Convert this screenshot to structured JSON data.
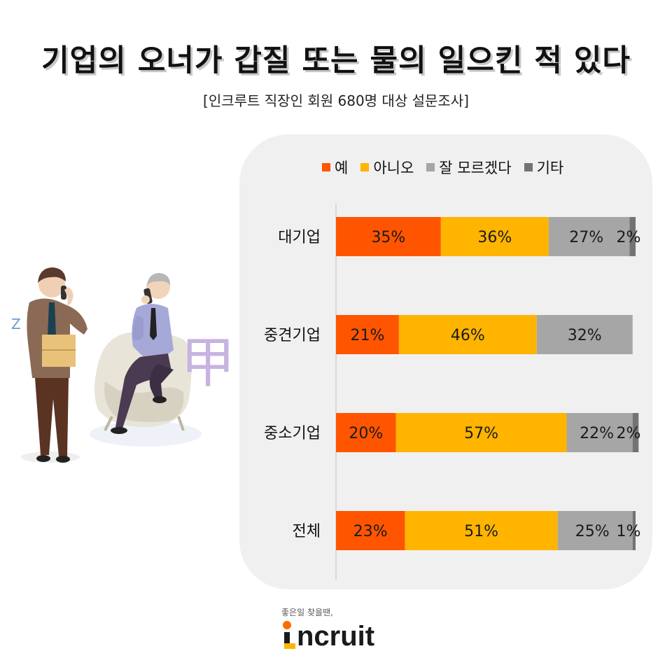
{
  "title": "기업의 오너가 갑질 또는 물의 일으킨 적 있다",
  "subtitle": "[인크루트 직장인 회원 680명 대상 설문조사]",
  "colors": {
    "yes": "#ff5500",
    "no": "#ffb400",
    "dontknow": "#a6a6a6",
    "other": "#737373",
    "panel": "#f0f0f0"
  },
  "logo": {
    "slogan": "좋은일 찾을땐,",
    "name": "ncruit",
    "mark_letter": "I"
  },
  "illustration": {
    "glyph_z": "Z",
    "glyph_gap": "甲"
  },
  "chart_data": {
    "type": "bar",
    "orientation": "horizontal",
    "stacked": true,
    "normalized": true,
    "legend_position": "top",
    "categories": [
      "대기업",
      "중견기업",
      "중소기업",
      "전체"
    ],
    "series": [
      {
        "name": "예",
        "values": [
          35,
          21,
          20,
          23
        ],
        "color": "#ff5500"
      },
      {
        "name": "아니오",
        "values": [
          36,
          46,
          57,
          51
        ],
        "color": "#ffb400"
      },
      {
        "name": "잘 모르겠다",
        "values": [
          27,
          32,
          22,
          25
        ],
        "color": "#a6a6a6"
      },
      {
        "name": "기타",
        "values": [
          2,
          0,
          2,
          1
        ],
        "color": "#737373"
      }
    ],
    "data_labels": [
      [
        "35%",
        "21%",
        "20%",
        "23%"
      ],
      [
        "36%",
        "46%",
        "57%",
        "51%"
      ],
      [
        "27%",
        "32%",
        "22%",
        "25%"
      ],
      [
        "2%",
        "",
        "2%",
        "1%"
      ]
    ],
    "value_suffix": "%"
  }
}
